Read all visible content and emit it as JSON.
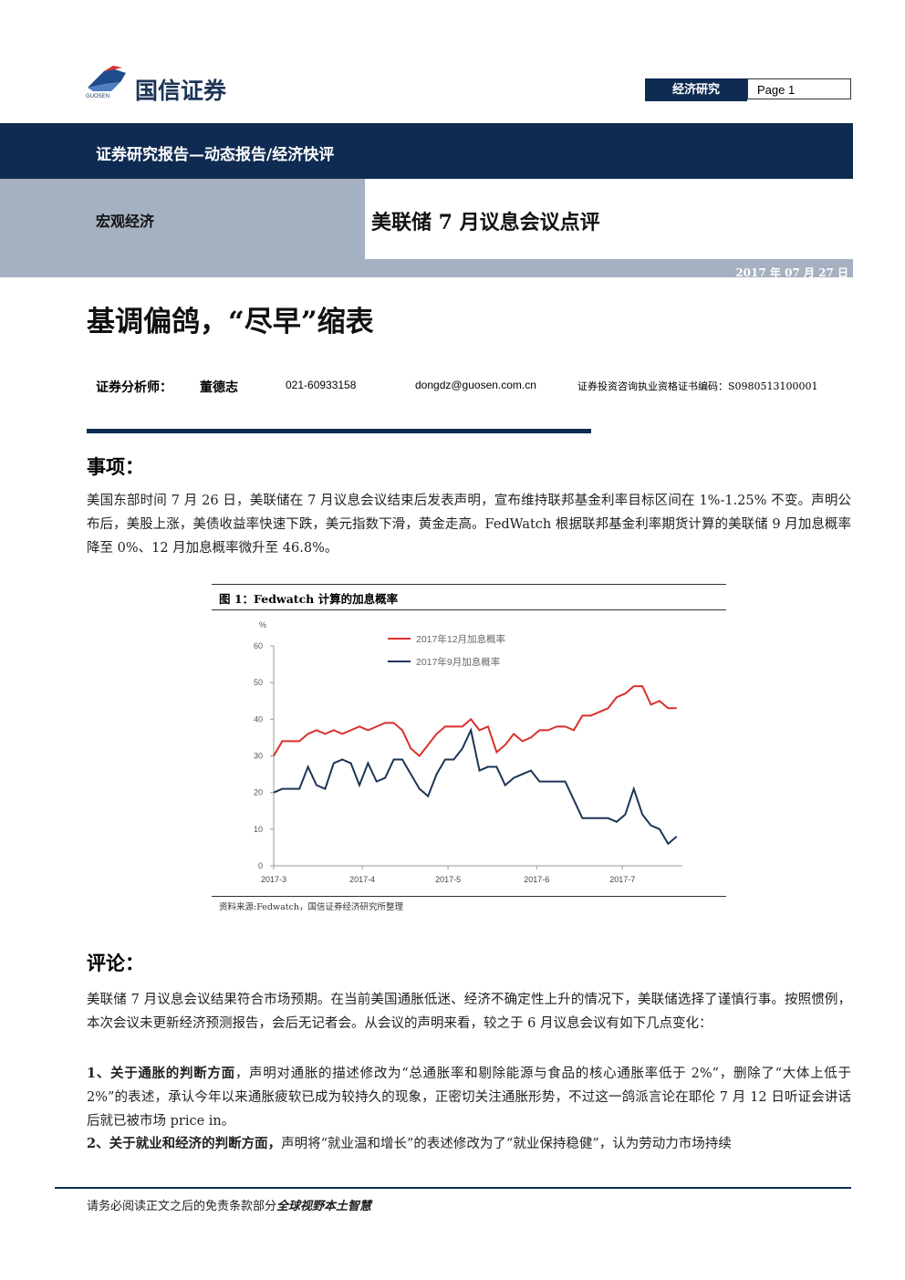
{
  "header": {
    "logo_cn": "国信证券",
    "logo_en": "GUOSEN",
    "section": "经济研究",
    "page": "Page 1"
  },
  "banner": {
    "report_type": "证券研究报告—动态报告/经济快评",
    "category": "宏观经济",
    "report_title": "美联储 7 月议息会议点评",
    "date": "2017 年 07 月 27 日"
  },
  "headline": "基调偏鸽，“尽早”缩表",
  "analyst": {
    "label": "证券分析师：",
    "name": "董德志",
    "phone": "021-60933158",
    "email": "dongdz@guosen.com.cn",
    "license": "证券投资咨询执业资格证书编码：S0980513100001"
  },
  "event": {
    "heading": "事项：",
    "paragraph": "美国东部时间 7 月 26 日，美联储在 7 月议息会议结束后发表声明，宣布维持联邦基金利率目标区间在 1%-1.25% 不变。声明公布后，美股上涨，美债收益率快速下跌，美元指数下滑，黄金走高。FedWatch 根据联邦基金利率期货计算的美联储 9 月加息概率降至 0%、12 月加息概率微升至 46.8%。"
  },
  "figure": {
    "caption": "图 1：Fedwatch 计算的加息概率",
    "source": "资料来源:Fedwatch，国信证券经济研究所整理"
  },
  "chart_data": {
    "type": "line",
    "y_unit": "%",
    "x": [
      0,
      3,
      6,
      9,
      12,
      15,
      18,
      21,
      24,
      27,
      30,
      33,
      36,
      39,
      42,
      45,
      48,
      51,
      54,
      57,
      60,
      63,
      66,
      69,
      72,
      75,
      78,
      81,
      84,
      87,
      90,
      93,
      96,
      99,
      102,
      105,
      108,
      111,
      114,
      117,
      120,
      123,
      126,
      129,
      132,
      135,
      138,
      141
    ],
    "xlim": [
      0,
      143
    ],
    "xticks": [
      {
        "value": 0,
        "label": "2017-3"
      },
      {
        "value": 31,
        "label": "2017-4"
      },
      {
        "value": 61,
        "label": "2017-5"
      },
      {
        "value": 92,
        "label": "2017-6"
      },
      {
        "value": 122,
        "label": "2017-7"
      }
    ],
    "ylim": [
      0,
      60
    ],
    "yticks": [
      0,
      10,
      20,
      30,
      40,
      50,
      60
    ],
    "series": [
      {
        "name": "2017年12月加息概率",
        "color": "#d9302c",
        "values": [
          30,
          34,
          34,
          34,
          36,
          37,
          36,
          37,
          36,
          37,
          38,
          37,
          38,
          39,
          39,
          37,
          32,
          30,
          33,
          36,
          38,
          38,
          38,
          40,
          37,
          38,
          31,
          33,
          36,
          34,
          35,
          37,
          37,
          38,
          38,
          37,
          41,
          41,
          42,
          43,
          46,
          47,
          49,
          49,
          44,
          45,
          43,
          43
        ]
      },
      {
        "name": "2017年9月加息概率",
        "color": "#1d3557",
        "values": [
          20,
          21,
          21,
          21,
          27,
          22,
          21,
          28,
          29,
          28,
          22,
          28,
          23,
          24,
          29,
          29,
          25,
          21,
          19,
          25,
          29,
          29,
          32,
          37,
          26,
          27,
          27,
          22,
          24,
          25,
          26,
          23,
          23,
          23,
          23,
          18,
          13,
          13,
          13,
          13,
          12,
          14,
          21,
          14,
          11,
          10,
          6,
          8
        ]
      }
    ]
  },
  "comment": {
    "heading": "评论：",
    "paragraph": "美联储 7 月议息会议结果符合市场预期。在当前美国通胀低迷、经济不确定性上升的情况下，美联储选择了谨慎行事。按照惯例，本次会议未更新经济预测报告，会后无记者会。从会议的声明来看，较之于 6 月议息会议有如下几点变化：",
    "points": [
      {
        "lead": "1、关于通胀的判断方面",
        "text": "，声明对通胀的描述修改为“总通胀率和剔除能源与食品的核心通胀率低于 2%”，删除了“大体上低于 2%”的表述，承认今年以来通胀疲软已成为较持久的现象，正密切关注通胀形势，不过这一鸽派言论在耶伦 7 月 12 日听证会讲话后就已被市场 price in。"
      },
      {
        "lead": "2、关于就业和经济的判断方面，",
        "text": "声明将“就业温和增长”的表述修改为了“就业保持稳健”，认为劳动力市场持续"
      }
    ]
  },
  "footer": {
    "text": "请务必阅读正文之后的免责条款部分",
    "slogan": "全球视野本土智慧"
  }
}
